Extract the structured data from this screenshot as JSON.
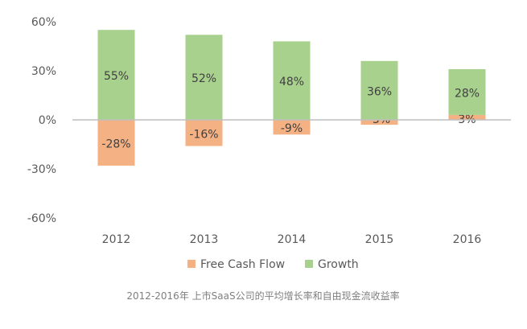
{
  "chart_data": {
    "type": "bar",
    "stacked": true,
    "categories": [
      "2012",
      "2013",
      "2014",
      "2015",
      "2016"
    ],
    "series": [
      {
        "name": "Free Cash Flow",
        "color": "#f4b183",
        "values": [
          -28,
          -16,
          -9,
          -3,
          3
        ],
        "labels": [
          "-28%",
          "-16%",
          "-9%",
          "-3%",
          "3%"
        ]
      },
      {
        "name": "Growth",
        "color": "#a9d18e",
        "values": [
          55,
          52,
          48,
          36,
          28
        ],
        "labels": [
          "55%",
          "52%",
          "48%",
          "36%",
          "28%"
        ]
      }
    ],
    "ylim": [
      -60,
      60
    ],
    "yticks": [
      60,
      30,
      0,
      -30,
      -60
    ],
    "ytick_labels": [
      "60%",
      "30%",
      "0%",
      "-30%",
      "-60%"
    ],
    "legend": "bottom",
    "grid": false,
    "caption": "2012-2016年 上市SaaS公司的平均增长率和自由现金流收益率"
  }
}
